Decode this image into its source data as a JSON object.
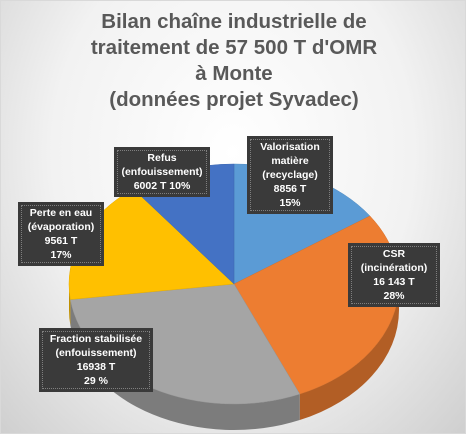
{
  "chart_data": {
    "type": "pie",
    "title_lines": [
      "Bilan chaîne industrielle de",
      "traitement de 57 500 T d'OMR",
      "à Monte",
      "(données projet Syvadec)"
    ],
    "slices": [
      {
        "name": "Valorisation matière (recyclage)",
        "value": 8856,
        "percent": 15,
        "color": "#5b9bd5",
        "label_lines": [
          "Valorisation",
          "matière",
          "(recyclage)",
          "8856 T",
          "15%"
        ]
      },
      {
        "name": "CSR (incinération)",
        "value": 16143,
        "percent": 28,
        "color": "#ed7d31",
        "label_lines": [
          "CSR",
          "(incinération)",
          "16 143 T",
          "28%"
        ]
      },
      {
        "name": "Fraction stabilisée (enfouissement)",
        "value": 16938,
        "percent": 29,
        "color": "#a5a5a5",
        "label_lines": [
          "Fraction stabilisée",
          "(enfouissement)",
          "16938 T",
          "29 %"
        ]
      },
      {
        "name": "Perte en eau (évaporation)",
        "value": 9561,
        "percent": 17,
        "color": "#ffc000",
        "label_lines": [
          "Perte en eau",
          "(évaporation)",
          "9561 T",
          "17%"
        ]
      },
      {
        "name": "Refus (enfouissement)",
        "value": 6002,
        "percent": 10,
        "color": "#4472c4",
        "label_lines": [
          "Refus",
          "(enfouissement)",
          "6002 T  10%"
        ]
      }
    ]
  }
}
